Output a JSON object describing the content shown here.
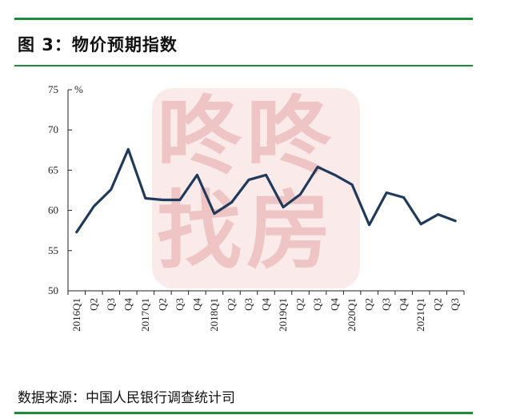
{
  "header": {
    "title": "图 3：物价预期指数"
  },
  "footer": {
    "source": "数据来源：中国人民银行调查统计司"
  },
  "watermark": {
    "text": "咚咚找房"
  },
  "colors": {
    "rule": "#1f8a3c",
    "line": "#213a59",
    "watermark": "#e39696"
  },
  "chart_data": {
    "type": "line",
    "title": "",
    "ylabel": "%",
    "ylim": [
      50,
      75
    ],
    "yticks": [
      50,
      55,
      60,
      65,
      70,
      75
    ],
    "grid": false,
    "categories": [
      "2016Q1",
      "Q2",
      "Q3",
      "Q4",
      "2017Q1",
      "Q2",
      "Q3",
      "Q4",
      "2018Q1",
      "Q2",
      "Q3",
      "Q4",
      "2019Q1",
      "Q2",
      "Q3",
      "Q4",
      "2020Q1",
      "Q2",
      "Q3",
      "Q4",
      "2021Q1",
      "Q2",
      "Q3"
    ],
    "series": [
      {
        "values": [
          57.3,
          60.5,
          62.6,
          67.6,
          61.5,
          61.3,
          61.3,
          64.4,
          59.6,
          61.0,
          63.8,
          64.4,
          60.4,
          62.0,
          65.4,
          64.4,
          63.2,
          58.2,
          62.2,
          61.6,
          58.3,
          59.5,
          58.7
        ]
      }
    ]
  }
}
